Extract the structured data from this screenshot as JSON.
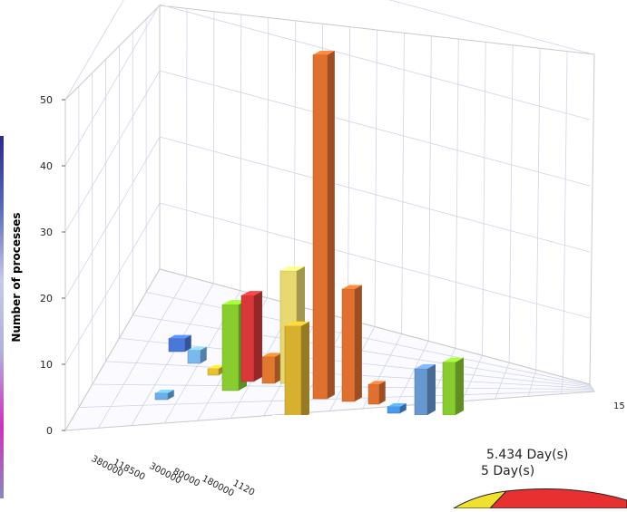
{
  "chart_data": {
    "type": "bar",
    "ylabel": "Number of processes",
    "ylim": [
      0,
      50
    ],
    "y_ticks": [
      "0",
      "10",
      "20",
      "30",
      "40",
      "50"
    ],
    "x_ticks": [
      "380000",
      "118500",
      "300000",
      "80000",
      "180000",
      "1120"
    ],
    "depth_tick": "15",
    "grid": true,
    "series": [
      {
        "values": [
          1
        ]
      },
      {
        "values": [
          2
        ]
      },
      {
        "values": [
          2
        ]
      },
      {
        "values": [
          1
        ]
      },
      {
        "values": [
          13
        ]
      },
      {
        "values": [
          13
        ]
      },
      {
        "values": [
          4
        ]
      },
      {
        "values": [
          17
        ]
      },
      {
        "values": [
          14
        ]
      },
      {
        "values": [
          52
        ]
      },
      {
        "values": [
          17
        ]
      },
      {
        "values": [
          3
        ]
      },
      {
        "values": [
          1
        ]
      },
      {
        "values": [
          7
        ]
      },
      {
        "values": [
          8
        ]
      }
    ]
  },
  "overlay": {
    "line1": "5.434 Day(s)",
    "line2": "5 Day(s)",
    "pie_colors": [
      "#f0e030",
      "#e83030"
    ]
  }
}
